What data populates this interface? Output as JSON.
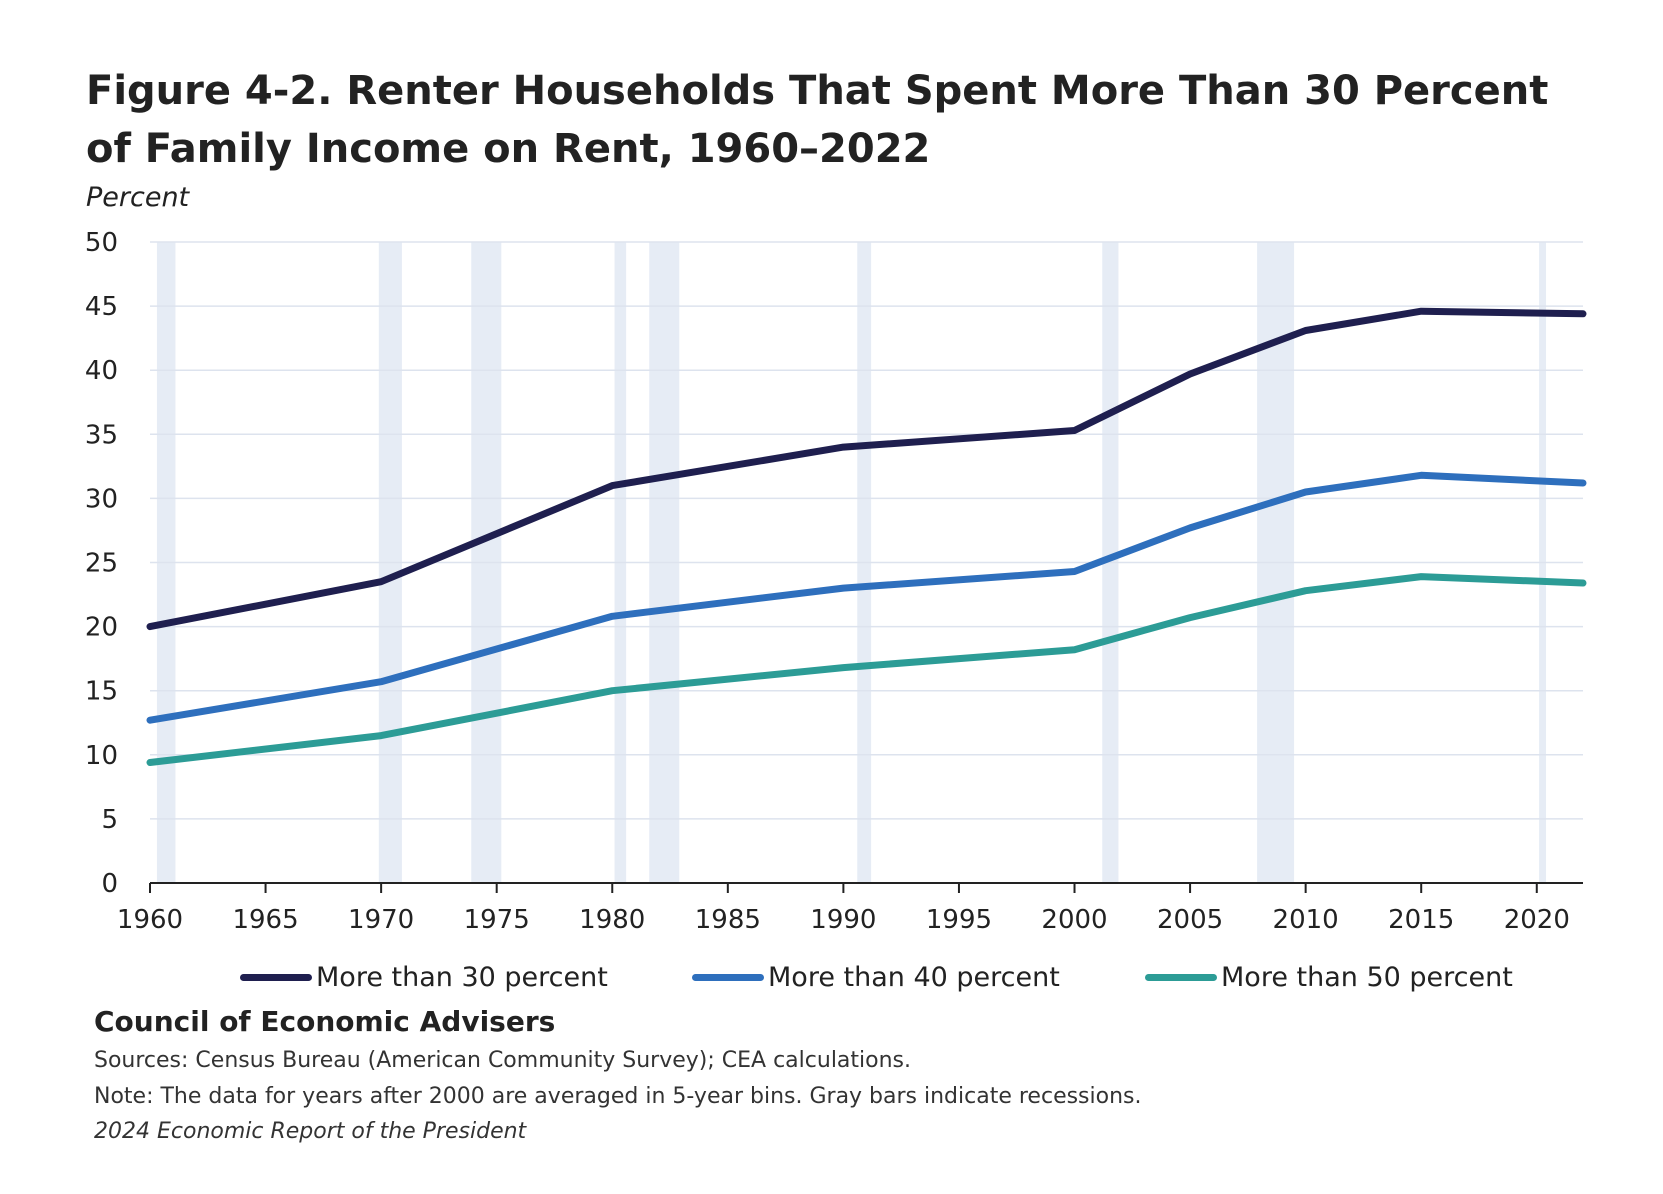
{
  "title": "Figure 4-2. Renter Households That Spent More Than 30 Percent of Family Income on Rent, 1960–2022",
  "y_unit_label": "Percent",
  "footer": {
    "organization": "Council of Economic Advisers",
    "sources": "Sources: Census Bureau (American Community Survey); CEA calculations.",
    "note": "Note: The data for years after 2000 are averaged in 5-year bins. Gray bars indicate recessions.",
    "publication": "2024 Economic Report of the President"
  },
  "chart_data": {
    "type": "line",
    "title": "Figure 4-2. Renter Households That Spent More Than 30 Percent of Family Income on Rent, 1960–2022",
    "xlabel": "",
    "ylabel": "Percent",
    "xlim": [
      1960,
      2022
    ],
    "ylim": [
      0,
      50
    ],
    "x_ticks": [
      1960,
      1965,
      1970,
      1975,
      1980,
      1985,
      1990,
      1995,
      2000,
      2005,
      2010,
      2015,
      2020
    ],
    "y_ticks": [
      0,
      5,
      10,
      15,
      20,
      25,
      30,
      35,
      40,
      45,
      50
    ],
    "grid": "horizontal",
    "legend_position": "bottom",
    "x": [
      1960,
      1970,
      1980,
      1990,
      2000,
      2005,
      2010,
      2015,
      2022
    ],
    "series": [
      {
        "name": "More than 30 percent",
        "color": "#1f1f4f",
        "values": [
          20.0,
          23.5,
          31.0,
          34.0,
          35.3,
          39.7,
          43.1,
          44.6,
          44.4
        ]
      },
      {
        "name": "More than 40 percent",
        "color": "#2e6fbd",
        "values": [
          12.7,
          15.7,
          20.8,
          23.0,
          24.3,
          27.7,
          30.5,
          31.8,
          31.2
        ]
      },
      {
        "name": "More than 50 percent",
        "color": "#2c9c96",
        "values": [
          9.4,
          11.5,
          15.0,
          16.8,
          18.2,
          20.7,
          22.8,
          23.9,
          23.4
        ]
      }
    ],
    "recessions": [
      {
        "start": 1960.3,
        "end": 1961.1
      },
      {
        "start": 1969.9,
        "end": 1970.9
      },
      {
        "start": 1973.9,
        "end": 1975.2
      },
      {
        "start": 1980.1,
        "end": 1980.6
      },
      {
        "start": 1981.6,
        "end": 1982.9
      },
      {
        "start": 1990.6,
        "end": 1991.2
      },
      {
        "start": 2001.2,
        "end": 2001.9
      },
      {
        "start": 2007.9,
        "end": 2009.5
      },
      {
        "start": 2020.1,
        "end": 2020.4
      }
    ],
    "recession_color": "#e6ecf5"
  }
}
